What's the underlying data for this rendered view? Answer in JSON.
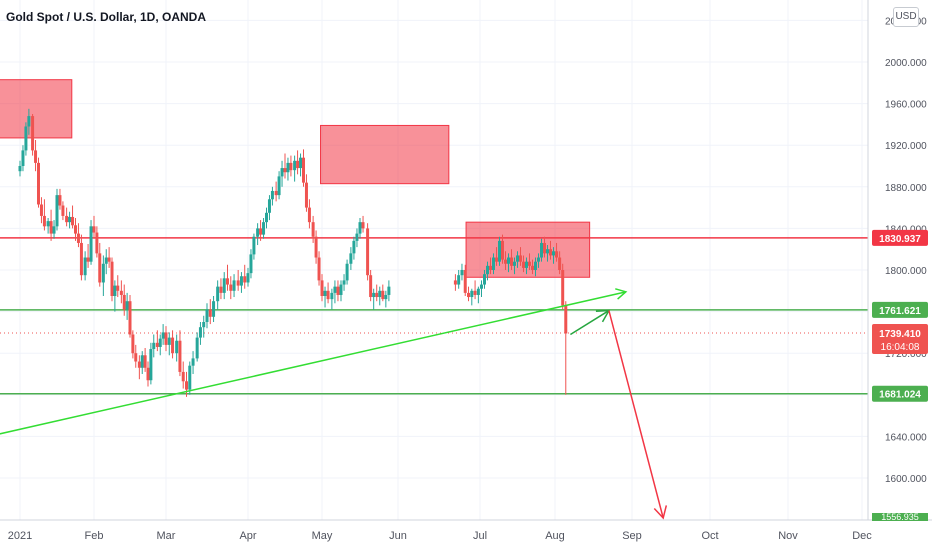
{
  "symbol_title": "Gold Spot / U.S. Dollar, 1D, OANDA",
  "currency_button": "USD",
  "chart_data": {
    "type": "candlestick",
    "title": "Gold Spot / U.S. Dollar, 1D, OANDA",
    "ylim": [
      1556,
      2000
    ],
    "y_ticks": [
      "2000.000",
      "1960.000",
      "1920.000",
      "1880.000",
      "1840.000",
      "1800.000",
      "1760.000",
      "1720.000",
      "1680.000",
      "1640.000",
      "1600.000"
    ],
    "y_tick_values": [
      2000,
      1960,
      1920,
      1880,
      1840,
      1800,
      1760,
      1720,
      1680,
      1640,
      1600
    ],
    "top_partial_tick": "2040.000",
    "bottom_partial_tick": "1556.935",
    "x_ticks": [
      "2021",
      "Feb",
      "Mar",
      "Apr",
      "May",
      "Jun",
      "Jul",
      "Aug",
      "Sep",
      "Oct",
      "Nov",
      "Dec"
    ],
    "x_tick_months": [
      0,
      1,
      2,
      3,
      4,
      5,
      6,
      7,
      8,
      9,
      10,
      11
    ],
    "colors": {
      "up": "#26a69a",
      "down": "#ef5350",
      "hline_red": "#f23645",
      "hline_green": "#4caf50",
      "trend": "#33dd33",
      "zone": "rgba(242,54,69,0.55)"
    },
    "horizontal_levels": [
      {
        "price": 1830.937,
        "label": "1830.937",
        "color": "red"
      },
      {
        "price": 1761.621,
        "label": "1761.621",
        "color": "green"
      },
      {
        "price": 1681.024,
        "label": "1681.024",
        "color": "green"
      }
    ],
    "last_price": {
      "price": 1739.41,
      "label": "1739.410",
      "countdown": "16:04:08"
    },
    "supply_zones": [
      {
        "from_month": -0.3,
        "to_month": 0.7,
        "low": 1927,
        "high": 1983
      },
      {
        "from_month": 3.98,
        "to_month": 5.62,
        "low": 1883,
        "high": 1939
      },
      {
        "from_month": 5.83,
        "to_month": 7.45,
        "low": 1793,
        "high": 1846
      }
    ],
    "trendline": {
      "from": [
        -0.3,
        1642
      ],
      "to": [
        7.92,
        1779
      ]
    },
    "projection_arrows": [
      {
        "from": [
          7.2,
          1738
        ],
        "to": [
          7.7,
          1761
        ],
        "color": "green"
      },
      {
        "from": [
          7.7,
          1761
        ],
        "to": [
          8.4,
          1556
        ],
        "color": "red"
      }
    ],
    "candles": [
      [
        0.0,
        1895,
        1905,
        1890,
        1900
      ],
      [
        0.04,
        1900,
        1920,
        1895,
        1915
      ],
      [
        0.08,
        1915,
        1942,
        1910,
        1938
      ],
      [
        0.12,
        1938,
        1955,
        1930,
        1948
      ],
      [
        0.17,
        1948,
        1950,
        1910,
        1915
      ],
      [
        0.21,
        1915,
        1925,
        1895,
        1903
      ],
      [
        0.25,
        1903,
        1908,
        1860,
        1863
      ],
      [
        0.29,
        1863,
        1870,
        1845,
        1852
      ],
      [
        0.33,
        1852,
        1868,
        1838,
        1842
      ],
      [
        0.38,
        1842,
        1850,
        1835,
        1847
      ],
      [
        0.42,
        1847,
        1858,
        1828,
        1835
      ],
      [
        0.46,
        1835,
        1848,
        1830,
        1842
      ],
      [
        0.5,
        1842,
        1878,
        1838,
        1872
      ],
      [
        0.54,
        1872,
        1878,
        1858,
        1862
      ],
      [
        0.58,
        1862,
        1866,
        1848,
        1852
      ],
      [
        0.63,
        1852,
        1860,
        1842,
        1846
      ],
      [
        0.67,
        1846,
        1856,
        1840,
        1851
      ],
      [
        0.71,
        1851,
        1862,
        1840,
        1843
      ],
      [
        0.75,
        1843,
        1850,
        1828,
        1835
      ],
      [
        0.79,
        1835,
        1845,
        1822,
        1826
      ],
      [
        0.83,
        1826,
        1834,
        1790,
        1795
      ],
      [
        0.88,
        1795,
        1818,
        1790,
        1812
      ],
      [
        0.92,
        1812,
        1825,
        1802,
        1808
      ],
      [
        0.96,
        1808,
        1848,
        1805,
        1842
      ],
      [
        1.0,
        1842,
        1852,
        1830,
        1836
      ],
      [
        1.04,
        1836,
        1842,
        1812,
        1816
      ],
      [
        1.08,
        1816,
        1826,
        1784,
        1788
      ],
      [
        1.13,
        1788,
        1814,
        1775,
        1806
      ],
      [
        1.17,
        1806,
        1820,
        1796,
        1812
      ],
      [
        1.21,
        1812,
        1822,
        1802,
        1808
      ],
      [
        1.25,
        1808,
        1812,
        1770,
        1775
      ],
      [
        1.29,
        1775,
        1790,
        1760,
        1785
      ],
      [
        1.33,
        1785,
        1795,
        1774,
        1780
      ],
      [
        1.38,
        1780,
        1790,
        1768,
        1776
      ],
      [
        1.42,
        1776,
        1786,
        1756,
        1762
      ],
      [
        1.46,
        1762,
        1778,
        1752,
        1770
      ],
      [
        1.5,
        1770,
        1776,
        1735,
        1738
      ],
      [
        1.54,
        1738,
        1742,
        1715,
        1720
      ],
      [
        1.58,
        1720,
        1728,
        1706,
        1712
      ],
      [
        1.63,
        1712,
        1718,
        1695,
        1706
      ],
      [
        1.67,
        1706,
        1722,
        1700,
        1718
      ],
      [
        1.71,
        1718,
        1725,
        1702,
        1706
      ],
      [
        1.75,
        1706,
        1712,
        1688,
        1694
      ],
      [
        1.79,
        1694,
        1730,
        1690,
        1724
      ],
      [
        1.83,
        1724,
        1738,
        1716,
        1730
      ],
      [
        1.88,
        1730,
        1742,
        1722,
        1726
      ],
      [
        1.92,
        1726,
        1738,
        1718,
        1734
      ],
      [
        1.96,
        1734,
        1748,
        1728,
        1740
      ],
      [
        2.0,
        1740,
        1746,
        1722,
        1728
      ],
      [
        2.04,
        1728,
        1740,
        1718,
        1735
      ],
      [
        2.08,
        1735,
        1742,
        1715,
        1720
      ],
      [
        2.13,
        1720,
        1738,
        1712,
        1732
      ],
      [
        2.17,
        1732,
        1742,
        1698,
        1702
      ],
      [
        2.21,
        1702,
        1712,
        1686,
        1693
      ],
      [
        2.25,
        1693,
        1702,
        1678,
        1685
      ],
      [
        2.29,
        1685,
        1712,
        1680,
        1708
      ],
      [
        2.33,
        1708,
        1722,
        1700,
        1715
      ],
      [
        2.38,
        1715,
        1740,
        1712,
        1735
      ],
      [
        2.42,
        1735,
        1750,
        1728,
        1745
      ],
      [
        2.46,
        1745,
        1756,
        1735,
        1750
      ],
      [
        2.5,
        1750,
        1768,
        1744,
        1762
      ],
      [
        2.54,
        1762,
        1772,
        1748,
        1755
      ],
      [
        2.58,
        1755,
        1775,
        1750,
        1770
      ],
      [
        2.63,
        1770,
        1790,
        1762,
        1784
      ],
      [
        2.67,
        1784,
        1792,
        1772,
        1778
      ],
      [
        2.71,
        1778,
        1798,
        1772,
        1792
      ],
      [
        2.75,
        1792,
        1805,
        1780,
        1786
      ],
      [
        2.79,
        1786,
        1794,
        1772,
        1780
      ],
      [
        2.83,
        1780,
        1796,
        1774,
        1790
      ],
      [
        2.88,
        1790,
        1800,
        1780,
        1785
      ],
      [
        2.92,
        1785,
        1798,
        1778,
        1794
      ],
      [
        2.96,
        1794,
        1805,
        1782,
        1788
      ],
      [
        3.0,
        1788,
        1802,
        1784,
        1797
      ],
      [
        3.04,
        1797,
        1820,
        1792,
        1815
      ],
      [
        3.08,
        1815,
        1835,
        1810,
        1832
      ],
      [
        3.13,
        1832,
        1845,
        1824,
        1840
      ],
      [
        3.17,
        1840,
        1848,
        1828,
        1834
      ],
      [
        3.21,
        1834,
        1850,
        1830,
        1846
      ],
      [
        3.25,
        1846,
        1860,
        1840,
        1855
      ],
      [
        3.29,
        1855,
        1872,
        1848,
        1868
      ],
      [
        3.33,
        1868,
        1880,
        1862,
        1876
      ],
      [
        3.38,
        1876,
        1885,
        1866,
        1872
      ],
      [
        3.42,
        1872,
        1895,
        1868,
        1890
      ],
      [
        3.46,
        1890,
        1905,
        1880,
        1898
      ],
      [
        3.5,
        1898,
        1912,
        1888,
        1894
      ],
      [
        3.54,
        1894,
        1908,
        1886,
        1903
      ],
      [
        3.58,
        1903,
        1910,
        1890,
        1896
      ],
      [
        3.63,
        1896,
        1910,
        1885,
        1905
      ],
      [
        3.67,
        1905,
        1915,
        1892,
        1898
      ],
      [
        3.71,
        1898,
        1912,
        1890,
        1908
      ],
      [
        3.75,
        1908,
        1916,
        1880,
        1884
      ],
      [
        3.79,
        1884,
        1892,
        1856,
        1860
      ],
      [
        3.83,
        1860,
        1868,
        1840,
        1846
      ],
      [
        3.88,
        1846,
        1852,
        1826,
        1832
      ],
      [
        3.92,
        1832,
        1838,
        1806,
        1812
      ],
      [
        3.96,
        1812,
        1818,
        1785,
        1790
      ],
      [
        4.0,
        1790,
        1796,
        1770,
        1775
      ],
      [
        4.04,
        1775,
        1784,
        1764,
        1780
      ],
      [
        4.08,
        1780,
        1788,
        1768,
        1772
      ],
      [
        4.13,
        1772,
        1782,
        1762,
        1778
      ],
      [
        4.17,
        1778,
        1790,
        1768,
        1784
      ],
      [
        4.21,
        1784,
        1790,
        1770,
        1776
      ],
      [
        4.25,
        1776,
        1790,
        1770,
        1786
      ],
      [
        4.29,
        1786,
        1796,
        1780,
        1790
      ],
      [
        4.33,
        1790,
        1810,
        1786,
        1806
      ],
      [
        4.38,
        1806,
        1822,
        1800,
        1816
      ],
      [
        4.42,
        1816,
        1832,
        1810,
        1828
      ],
      [
        4.46,
        1828,
        1840,
        1822,
        1835
      ],
      [
        4.5,
        1835,
        1850,
        1830,
        1846
      ],
      [
        4.54,
        1846,
        1852,
        1836,
        1840
      ]
    ],
    "candles_note": "each candle: [month_offset, open, high, low, close]"
  }
}
